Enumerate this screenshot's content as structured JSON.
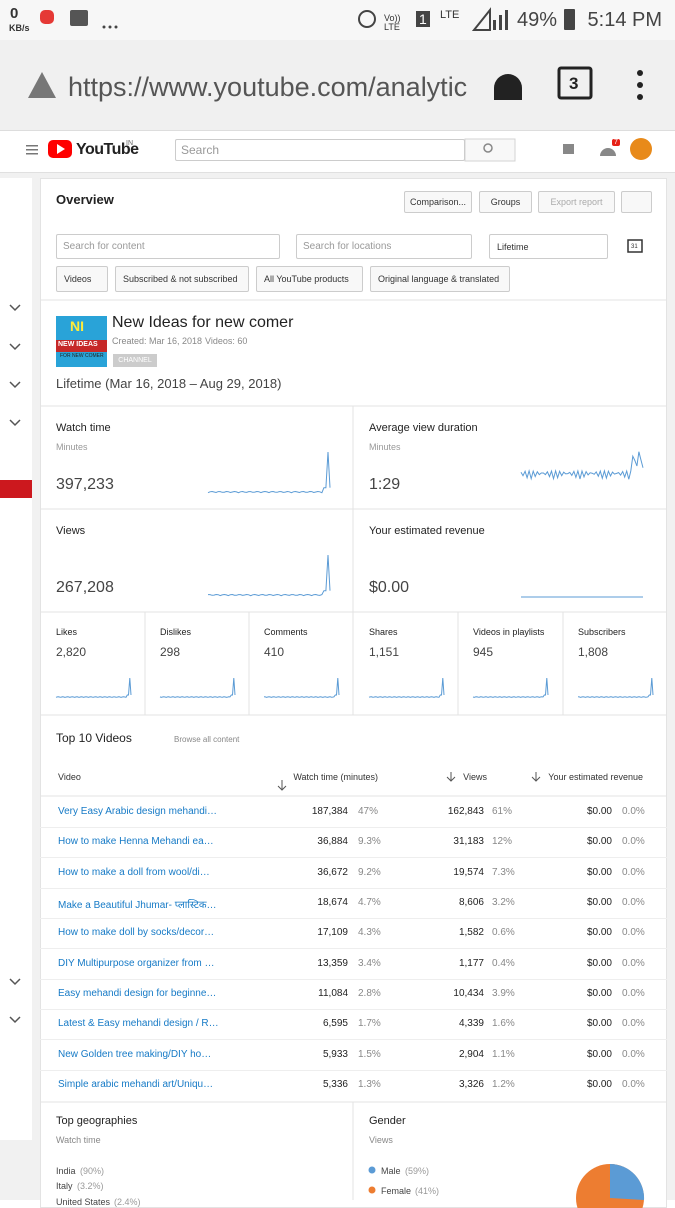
{
  "status_bar": {
    "speed": "0",
    "speed_unit": "KB/s",
    "volte": "Vo)) LTE",
    "sim": "1",
    "network": "LTE",
    "battery": "49%",
    "time": "5:14 PM"
  },
  "browser": {
    "url": "https://www.youtube.com/analytic",
    "tabs": "3"
  },
  "header": {
    "logo": "YouTube",
    "region": "IN",
    "search": "Search",
    "notifications": "7"
  },
  "overview": {
    "title": "Overview",
    "buttons": [
      "Comparison...",
      "Groups",
      "Export report"
    ],
    "search_content": "Search for content",
    "search_locations": "Search for locations",
    "period": "Lifetime",
    "calendar": "31",
    "filters": [
      "Videos",
      "Subscribed & not subscribed",
      "All YouTube products",
      "Original language & translated"
    ]
  },
  "channel": {
    "logo_top": "NI",
    "logo_mid": "NEW IDEAS",
    "logo_bottom": "FOR NEW COMER",
    "name": "New Ideas for new comer",
    "created": "Created: Mar 16, 2018",
    "videos": "Videos: 60",
    "badge": "CHANNEL",
    "range": "Lifetime (Mar 16, 2018 – Aug 29, 2018)"
  },
  "metrics": [
    {
      "label": "Watch time",
      "unit": "Minutes",
      "value": "397,233"
    },
    {
      "label": "Average view duration",
      "unit": "Minutes",
      "value": "1:29"
    },
    {
      "label": "Views",
      "value": "267,208"
    },
    {
      "label": "Your estimated revenue",
      "value": "$0.00"
    }
  ],
  "small_metrics": [
    {
      "label": "Likes",
      "value": "2,820"
    },
    {
      "label": "Dislikes",
      "value": "298"
    },
    {
      "label": "Comments",
      "value": "410"
    },
    {
      "label": "Shares",
      "value": "1,151"
    },
    {
      "label": "Videos in playlists",
      "value": "945"
    },
    {
      "label": "Subscribers",
      "value": "1,808"
    }
  ],
  "top_videos": {
    "title": "Top 10 Videos",
    "browse": "Browse all content",
    "columns": [
      "Video",
      "Watch time (minutes)",
      "Views",
      "Your estimated revenue"
    ],
    "rows": [
      [
        "Very Easy Arabic design mehandi…",
        "187,384",
        "47%",
        "162,843",
        "61%",
        "$0.00",
        "0.0%"
      ],
      [
        "How to make Henna Mehandi ea…",
        "36,884",
        "9.3%",
        "31,183",
        "12%",
        "$0.00",
        "0.0%"
      ],
      [
        "How to make a doll from wool/di…",
        "36,672",
        "9.2%",
        "19,574",
        "7.3%",
        "$0.00",
        "0.0%"
      ],
      [
        "Make a Beautiful Jhumar- प्लास्टिक…",
        "18,674",
        "4.7%",
        "8,606",
        "3.2%",
        "$0.00",
        "0.0%"
      ],
      [
        "How to make doll by socks/decor…",
        "17,109",
        "4.3%",
        "1,582",
        "0.6%",
        "$0.00",
        "0.0%"
      ],
      [
        "DIY Multipurpose organizer from …",
        "13,359",
        "3.4%",
        "1,177",
        "0.4%",
        "$0.00",
        "0.0%"
      ],
      [
        "Easy mehandi design for beginne…",
        "11,084",
        "2.8%",
        "10,434",
        "3.9%",
        "$0.00",
        "0.0%"
      ],
      [
        "Latest & Easy mehandi design / R…",
        "6,595",
        "1.7%",
        "4,339",
        "1.6%",
        "$0.00",
        "0.0%"
      ],
      [
        "New Golden tree making/DIY ho…",
        "5,933",
        "1.5%",
        "2,904",
        "1.1%",
        "$0.00",
        "0.0%"
      ],
      [
        "Simple arabic mehandi art/Uniqu…",
        "5,336",
        "1.3%",
        "3,326",
        "1.2%",
        "$0.00",
        "0.0%"
      ]
    ]
  },
  "geographies": {
    "title": "Top geographies",
    "subtitle": "Watch time",
    "items": [
      [
        "India",
        "(90%)"
      ],
      [
        "Italy",
        "(3.2%)"
      ],
      [
        "United States",
        "(2.4%)"
      ]
    ]
  },
  "gender": {
    "title": "Gender",
    "subtitle": "Views",
    "items": [
      [
        "Male",
        "(59%)"
      ],
      [
        "Female",
        "(41%)"
      ]
    ]
  }
}
